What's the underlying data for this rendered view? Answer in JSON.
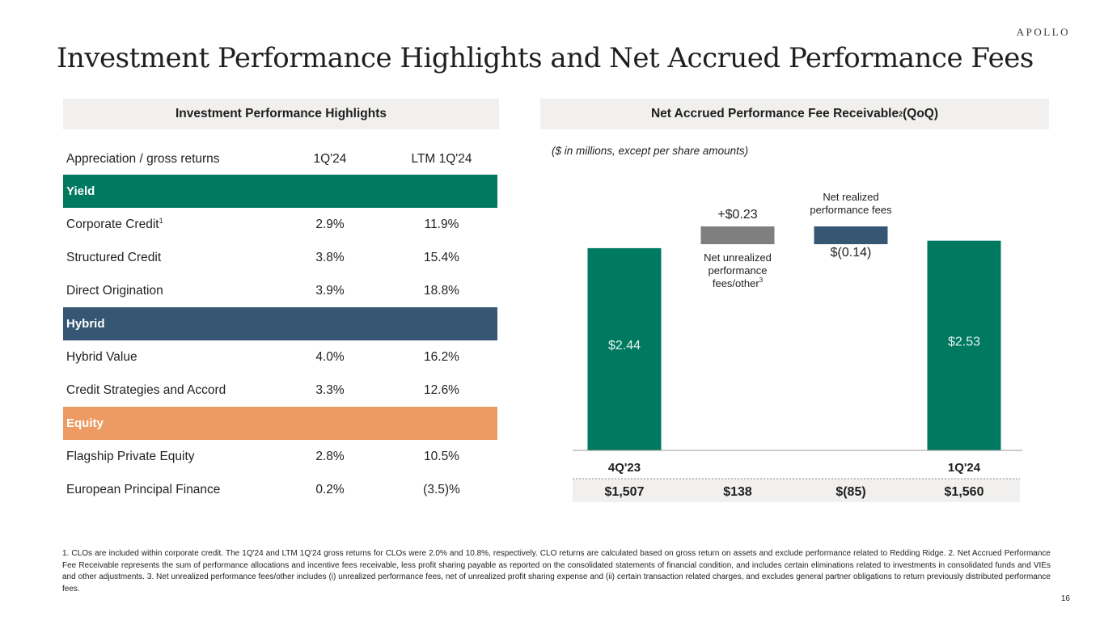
{
  "logo": "APOLLO",
  "title": "Investment Performance Highlights and Net Accrued Performance Fees",
  "left_panel": {
    "header": "Investment Performance Highlights",
    "columns": [
      "Appreciation / gross returns",
      "1Q'24",
      "LTM 1Q'24"
    ],
    "groups": [
      {
        "name": "Yield",
        "color": "#007961",
        "rows": [
          {
            "label": "Corporate Credit",
            "sup": "1",
            "q": "2.9%",
            "ltm": "11.9%"
          },
          {
            "label": "Structured Credit",
            "sup": "",
            "q": "3.8%",
            "ltm": "15.4%"
          },
          {
            "label": "Direct Origination",
            "sup": "",
            "q": "3.9%",
            "ltm": "18.8%"
          }
        ]
      },
      {
        "name": "Hybrid",
        "color": "#365673",
        "rows": [
          {
            "label": "Hybrid Value",
            "sup": "",
            "q": "4.0%",
            "ltm": "16.2%"
          },
          {
            "label": "Credit Strategies and Accord",
            "sup": "",
            "q": "3.3%",
            "ltm": "12.6%"
          }
        ]
      },
      {
        "name": "Equity",
        "color": "#ed9b62",
        "rows": [
          {
            "label": "Flagship Private Equity",
            "sup": "",
            "q": "2.8%",
            "ltm": "10.5%"
          },
          {
            "label": "European Principal Finance",
            "sup": "",
            "q": "0.2%",
            "ltm": "(3.5)%"
          }
        ]
      }
    ]
  },
  "right_panel": {
    "header": "Net Accrued Performance Fee Receivable",
    "header_sup": "2",
    "header_suffix": " (QoQ)",
    "note": "($ in millions, except per share amounts)"
  },
  "chart_data": {
    "type": "bar",
    "subtype": "waterfall",
    "categories": [
      "4Q'23",
      "Net unrealized performance fees/other",
      "Net realized performance fees",
      "1Q'24"
    ],
    "values": [
      2.44,
      0.23,
      -0.14,
      2.53
    ],
    "value_labels": [
      "$2.44",
      "+$0.23",
      "$(0.14)",
      "$2.53"
    ],
    "amounts": [
      "$1,507",
      "$138",
      "$(85)",
      "$1,560"
    ],
    "axis_labels": [
      "4Q'23",
      "",
      "",
      "1Q'24"
    ],
    "bar_captions": [
      "",
      "Net unrealized|performance|fees/other",
      "Net realized|performance fees",
      ""
    ],
    "bar_caption_sups": [
      "",
      "3",
      "",
      ""
    ],
    "colors": [
      "#007961",
      "#7f7f7f",
      "#365673",
      "#007961"
    ]
  },
  "footnote": "1. CLOs are included within corporate credit. The 1Q'24 and LTM 1Q'24 gross returns for CLOs were 2.0% and 10.8%, respectively. CLO returns are calculated based on gross return on assets and exclude performance related to Redding Ridge. 2. Net Accrued Performance Fee Receivable represents the sum of performance allocations and incentive fees receivable, less profit sharing payable as reported on the consolidated statements of financial condition, and includes certain eliminations related to investments in consolidated funds and VIEs and other adjustments. 3. Net unrealized performance fees/other includes (i) unrealized performance fees, net of unrealized profit sharing expense and (ii) certain transaction related charges, and excludes general partner obligations to return previously distributed performance fees.",
  "page_number": "16"
}
